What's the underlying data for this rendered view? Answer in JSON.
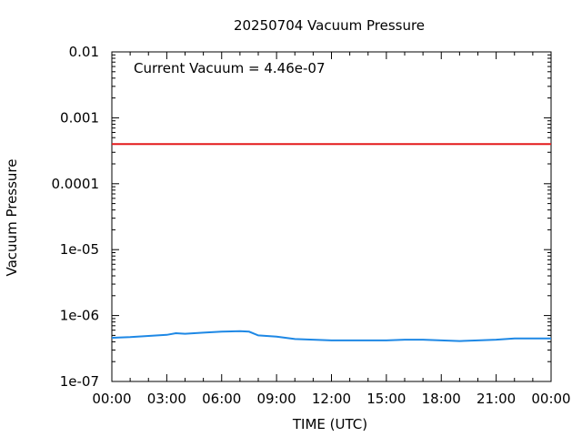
{
  "chart_data": {
    "type": "line",
    "title": "20250704 Vacuum Pressure",
    "xlabel": "TIME (UTC)",
    "ylabel": "Vacuum Pressure",
    "annotation": "Current Vacuum = 4.46e-07",
    "y_scale": "log",
    "ylim": [
      1e-07,
      0.01
    ],
    "y_ticks": [
      "0.01",
      "0.001",
      "0.0001",
      "1e-05",
      "1e-06",
      "1e-07"
    ],
    "y_tick_values": [
      0.01,
      0.001,
      0.0001,
      1e-05,
      1e-06,
      1e-07
    ],
    "xlim": [
      "00:00",
      "24:00"
    ],
    "x_ticks": [
      "00:00",
      "03:00",
      "06:00",
      "09:00",
      "12:00",
      "15:00",
      "18:00",
      "21:00",
      "00:00"
    ],
    "x_tick_hours": [
      0,
      3,
      6,
      9,
      12,
      15,
      18,
      21,
      24
    ],
    "grid": false,
    "threshold": {
      "value": 0.0004,
      "color": "#e41a1c"
    },
    "series": [
      {
        "color": "#1e88e5",
        "x": [
          "00:00",
          "01:00",
          "02:00",
          "03:00",
          "03:30",
          "04:00",
          "05:00",
          "06:00",
          "07:00",
          "07:30",
          "08:00",
          "09:00",
          "10:00",
          "11:00",
          "12:00",
          "13:00",
          "14:00",
          "15:00",
          "16:00",
          "17:00",
          "18:00",
          "19:00",
          "20:00",
          "21:00",
          "22:00",
          "23:00",
          "24:00"
        ],
        "y": [
          4.6e-07,
          4.7e-07,
          4.9e-07,
          5.1e-07,
          5.4e-07,
          5.3e-07,
          5.5e-07,
          5.7e-07,
          5.8e-07,
          5.7e-07,
          5e-07,
          4.8e-07,
          4.4e-07,
          4.3e-07,
          4.2e-07,
          4.2e-07,
          4.2e-07,
          4.2e-07,
          4.3e-07,
          4.3e-07,
          4.2e-07,
          4.1e-07,
          4.2e-07,
          4.3e-07,
          4.5e-07,
          4.5e-07,
          4.5e-07
        ]
      }
    ]
  }
}
